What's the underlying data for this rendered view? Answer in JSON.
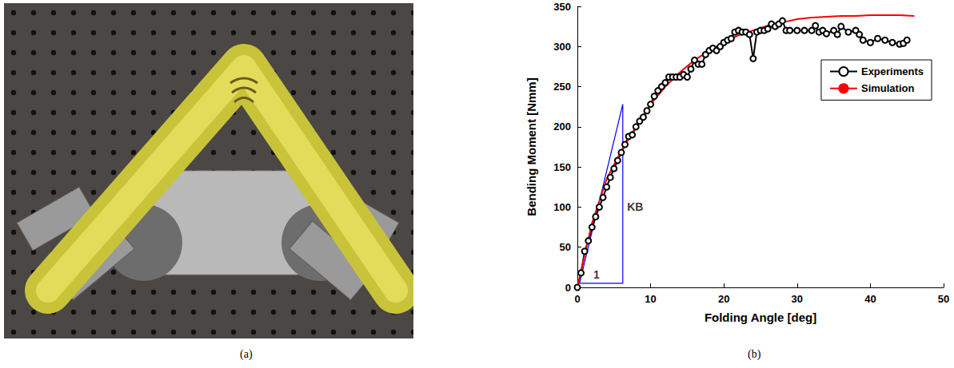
{
  "figure": {
    "captions": [
      "(a)",
      "(b)"
    ]
  },
  "chart_data": {
    "type": "line",
    "x_label": "Folding Angle [deg]",
    "y_label": "Bending Moment [Nmm]",
    "xlim": [
      0,
      50
    ],
    "xticks": [
      0,
      10,
      20,
      30,
      40,
      50
    ],
    "ylim": [
      0,
      350
    ],
    "yticks": [
      0,
      50,
      100,
      150,
      200,
      250,
      300,
      350
    ],
    "grid": false,
    "legend": "upper right",
    "series": [
      {
        "name": "Experiments",
        "color": "#000000",
        "marker": "circle",
        "line_style": "solid",
        "x": [
          0,
          0.5,
          1,
          1.5,
          2,
          2.5,
          3,
          3.5,
          4,
          4.5,
          5,
          5.5,
          6,
          6.5,
          7,
          7.5,
          8,
          8.5,
          9,
          9.5,
          10,
          10.5,
          11,
          11.5,
          12,
          12.5,
          13,
          13.5,
          14,
          14.5,
          15,
          15.5,
          16,
          16.5,
          17,
          17.5,
          18,
          18.5,
          19,
          19.5,
          20,
          20.5,
          21,
          21.5,
          22,
          22.5,
          23,
          23.5,
          24,
          24.5,
          25,
          25.5,
          26,
          26.5,
          27,
          27.5,
          28,
          28.5,
          29,
          30,
          31,
          32,
          32.5,
          33,
          33.5,
          34,
          35,
          35.5,
          36,
          37,
          38,
          38.5,
          39,
          40,
          41,
          42,
          43,
          44,
          44.5,
          45
        ],
        "values": [
          0,
          18,
          45,
          58,
          75,
          88,
          100,
          112,
          125,
          137,
          148,
          158,
          168,
          178,
          188,
          190,
          200,
          207,
          212,
          220,
          228,
          238,
          245,
          250,
          255,
          262,
          262,
          262,
          262,
          265,
          262,
          272,
          283,
          278,
          278,
          290,
          295,
          298,
          295,
          300,
          305,
          308,
          310,
          318,
          320,
          318,
          318,
          315,
          285,
          318,
          320,
          320,
          322,
          328,
          325,
          328,
          332,
          320,
          320,
          320,
          320,
          320,
          326,
          318,
          320,
          316,
          320,
          315,
          325,
          318,
          320,
          315,
          308,
          305,
          310,
          308,
          305,
          303,
          304,
          308
        ]
      },
      {
        "name": "Simulation",
        "color": "#ff0000",
        "marker": "none",
        "line_style": "solid",
        "x": [
          0,
          2,
          4,
          6,
          8,
          10,
          12,
          14,
          16,
          18,
          20,
          22,
          24,
          26,
          28,
          30,
          32,
          34,
          36,
          38,
          40,
          42,
          44,
          46
        ],
        "values": [
          0,
          80,
          135,
          170,
          200,
          228,
          250,
          268,
          283,
          295,
          305,
          314,
          320,
          326,
          330,
          334,
          336,
          337,
          338,
          338,
          339,
          339,
          339,
          338
        ]
      }
    ],
    "slope_triangle": {
      "x": [
        0.3,
        6.2,
        6.2,
        0.3
      ],
      "y": [
        5,
        5,
        228,
        5
      ],
      "color": "#0000ff"
    },
    "annotations": [
      {
        "text": "1",
        "x": 2.6,
        "y": 16
      },
      {
        "text": "KB",
        "x": 7.9,
        "y": 100
      }
    ]
  }
}
